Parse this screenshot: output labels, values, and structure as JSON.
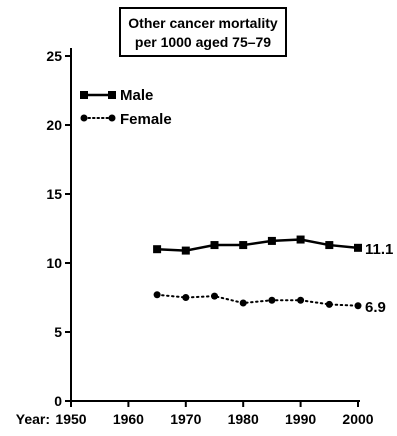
{
  "chart_data": {
    "type": "line",
    "title_lines": [
      "Other cancer mortality",
      "per 1000 aged 75–79"
    ],
    "x_axis_prefix": "Year:",
    "x_ticks": [
      1950,
      1960,
      1970,
      1980,
      1990,
      2000
    ],
    "y_ticks": [
      0,
      5,
      10,
      15,
      20,
      25
    ],
    "xlim": [
      1950,
      2000
    ],
    "ylim": [
      0,
      25
    ],
    "grid": false,
    "legend_placement": "top-left",
    "series": [
      {
        "name": "Male",
        "style": "solid",
        "marker": "square",
        "x": [
          1965,
          1970,
          1975,
          1980,
          1985,
          1990,
          1995,
          2000
        ],
        "y": [
          11.0,
          10.9,
          11.3,
          11.3,
          11.6,
          11.7,
          11.3,
          11.1
        ],
        "end_label": "11.1"
      },
      {
        "name": "Female",
        "style": "dotted",
        "marker": "circle",
        "x": [
          1965,
          1970,
          1975,
          1980,
          1985,
          1990,
          1995,
          2000
        ],
        "y": [
          7.7,
          7.5,
          7.6,
          7.1,
          7.3,
          7.3,
          7.0,
          6.9
        ],
        "end_label": "6.9"
      }
    ]
  }
}
